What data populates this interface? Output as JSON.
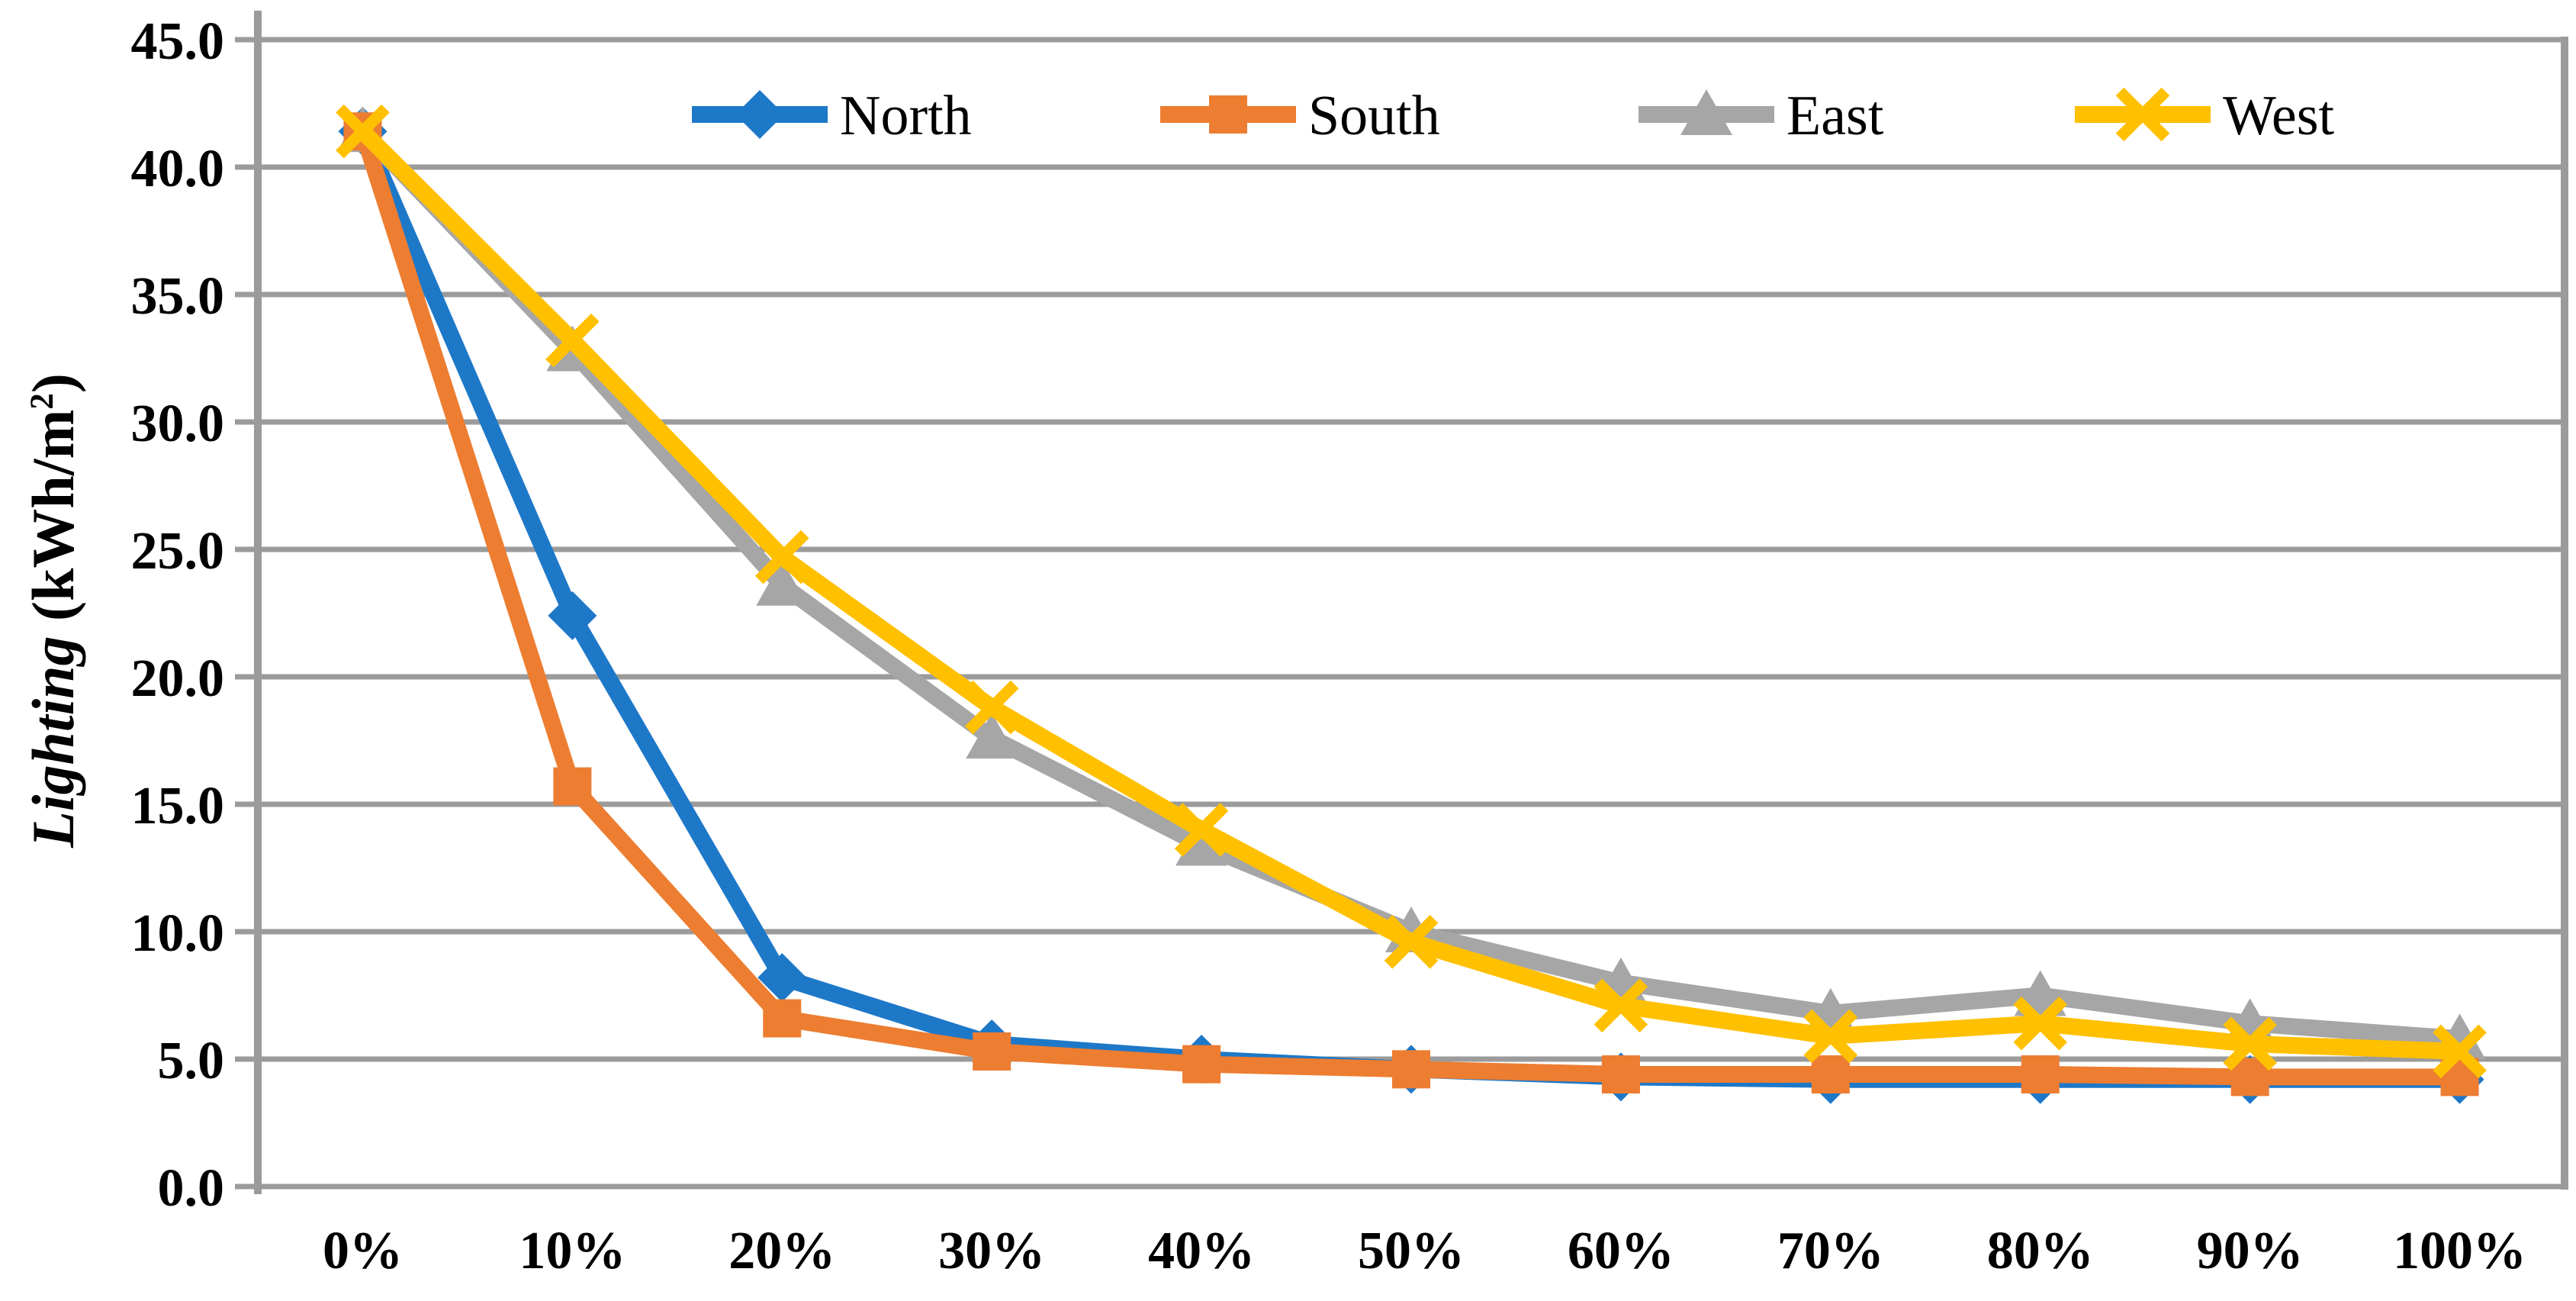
{
  "chart_data": {
    "type": "line",
    "title": "",
    "xlabel": "",
    "ylabel": {
      "word": "Lighting",
      "unit_prefix": " (kWh/m",
      "unit_sup": "2",
      "unit_suffix": ")"
    },
    "ylim": [
      0,
      45
    ],
    "y_tick_step": 5,
    "y_ticks": [
      "0.0",
      "5.0",
      "10.0",
      "15.0",
      "20.0",
      "25.0",
      "30.0",
      "35.0",
      "40.0",
      "45.0"
    ],
    "categories": [
      "0%",
      "10%",
      "20%",
      "30%",
      "40%",
      "50%",
      "60%",
      "70%",
      "80%",
      "90%",
      "100%"
    ],
    "grid": true,
    "legend_position": "top-center-inside",
    "legend_order": [
      "North",
      "South",
      "East",
      "West"
    ],
    "draw_order": [
      "North",
      "East",
      "South",
      "West"
    ],
    "series": [
      {
        "name": "North",
        "color": "#1E78C8",
        "marker": "diamond",
        "values": [
          41.4,
          22.4,
          8.2,
          5.6,
          5.0,
          4.6,
          4.3,
          4.2,
          4.2,
          4.2,
          4.2
        ]
      },
      {
        "name": "South",
        "color": "#ED7D31",
        "marker": "square",
        "values": [
          41.4,
          15.7,
          6.6,
          5.3,
          4.8,
          4.6,
          4.4,
          4.4,
          4.4,
          4.3,
          4.3
        ]
      },
      {
        "name": "East",
        "color": "#A6A6A6",
        "marker": "triangle",
        "values": [
          41.4,
          32.8,
          23.6,
          17.6,
          13.4,
          10.0,
          8.0,
          6.8,
          7.5,
          6.4,
          5.8
        ]
      },
      {
        "name": "West",
        "color": "#FFC000",
        "marker": "x",
        "values": [
          41.4,
          33.2,
          24.7,
          18.8,
          14.0,
          9.6,
          7.1,
          5.9,
          6.4,
          5.6,
          5.3
        ]
      }
    ],
    "colors": {
      "grid": "#9B9B9B",
      "axis": "#9B9B9B",
      "text": "#000000",
      "background": "#FFFFFF"
    }
  }
}
